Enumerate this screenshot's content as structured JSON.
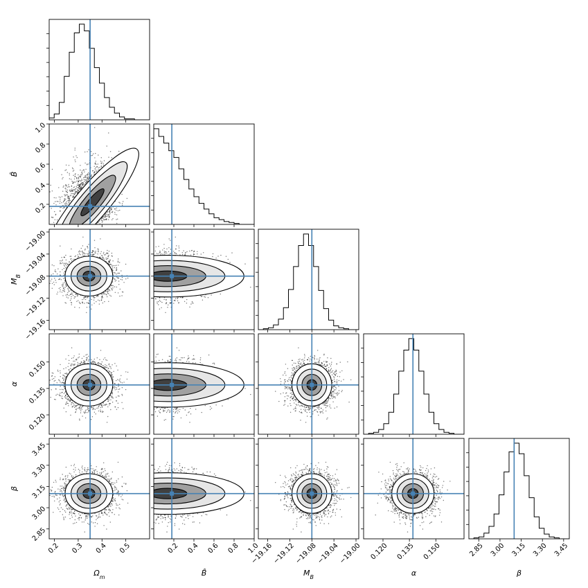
{
  "chart_data": {
    "type": "corner",
    "parameters": [
      {
        "key": "om",
        "label_main": "Ω",
        "label_sub": "m",
        "range": [
          0.178,
          0.6
        ],
        "ticks": [
          0.2,
          0.3,
          0.4,
          0.5
        ],
        "tick_labels": [
          "0.2",
          "0.3",
          "0.4",
          "0.5"
        ],
        "truth": 0.35,
        "mean": 0.345,
        "sd": 0.05
      },
      {
        "key": "bhat",
        "label_main": "B̂",
        "label_sub": "",
        "range": [
          0.0,
          1.0
        ],
        "ticks": [
          0.2,
          0.4,
          0.6,
          0.8,
          1.0
        ],
        "tick_labels": [
          "0.2",
          "0.4",
          "0.6",
          "0.8",
          "1.0"
        ],
        "truth": 0.18,
        "mean": 0.15,
        "sd": 0.2
      },
      {
        "key": "mb",
        "label_main": "M",
        "label_sub": "B",
        "range": [
          -19.177,
          -18.995
        ],
        "ticks": [
          -19.16,
          -19.12,
          -19.08,
          -19.04,
          -19.0
        ],
        "tick_labels": [
          "−19.16",
          "−19.12",
          "−19.08",
          "−19.04",
          "−19.00"
        ],
        "truth": -19.08,
        "mean": -19.08,
        "sd": 0.018
      },
      {
        "key": "alpha",
        "label_main": "α",
        "label_sub": "",
        "range": [
          0.109,
          0.166
        ],
        "ticks": [
          0.12,
          0.135,
          0.15
        ],
        "tick_labels": [
          "0.120",
          "0.135",
          "0.150"
        ],
        "truth": 0.137,
        "mean": 0.137,
        "sd": 0.006
      },
      {
        "key": "beta",
        "label_main": "β",
        "label_sub": "",
        "range": [
          2.78,
          3.49
        ],
        "ticks": [
          2.85,
          3.0,
          3.15,
          3.3,
          3.45
        ],
        "tick_labels": [
          "2.85",
          "3.00",
          "3.15",
          "3.30",
          "3.45"
        ],
        "truth": 3.1,
        "mean": 3.1,
        "sd": 0.07
      }
    ],
    "histograms": [
      {
        "param": "om",
        "bin_edges_start": 0.178,
        "bin_width": 0.0211,
        "counts": [
          2,
          6,
          18,
          45,
          70,
          90,
          99,
          92,
          74,
          54,
          38,
          23,
          13,
          7,
          3,
          1,
          1,
          0,
          0,
          0
        ]
      },
      {
        "param": "bhat",
        "bin_edges_start": 0.0,
        "bin_width": 0.05,
        "counts": [
          100,
          92,
          85,
          77,
          70,
          58,
          47,
          37,
          29,
          22,
          16,
          11,
          7,
          5,
          3,
          2,
          1,
          0,
          0,
          0
        ]
      },
      {
        "param": "mb",
        "bin_edges_start": -19.177,
        "bin_width": 0.0091,
        "counts": [
          0,
          1,
          2,
          5,
          11,
          23,
          42,
          66,
          88,
          100,
          88,
          66,
          41,
          22,
          10,
          4,
          2,
          1,
          0,
          0
        ]
      },
      {
        "param": "alpha",
        "bin_edges_start": 0.109,
        "bin_width": 0.00285,
        "counts": [
          0,
          1,
          2,
          5,
          11,
          23,
          42,
          66,
          88,
          100,
          88,
          66,
          42,
          23,
          11,
          5,
          2,
          1,
          0,
          0
        ]
      },
      {
        "param": "beta",
        "bin_edges_start": 2.78,
        "bin_width": 0.0355,
        "counts": [
          0,
          1,
          2,
          6,
          13,
          26,
          46,
          70,
          91,
          100,
          89,
          66,
          43,
          23,
          11,
          5,
          2,
          1,
          0,
          0
        ]
      }
    ],
    "truth_color": "#4682b4",
    "hist_color": "#000000",
    "grid": false
  }
}
